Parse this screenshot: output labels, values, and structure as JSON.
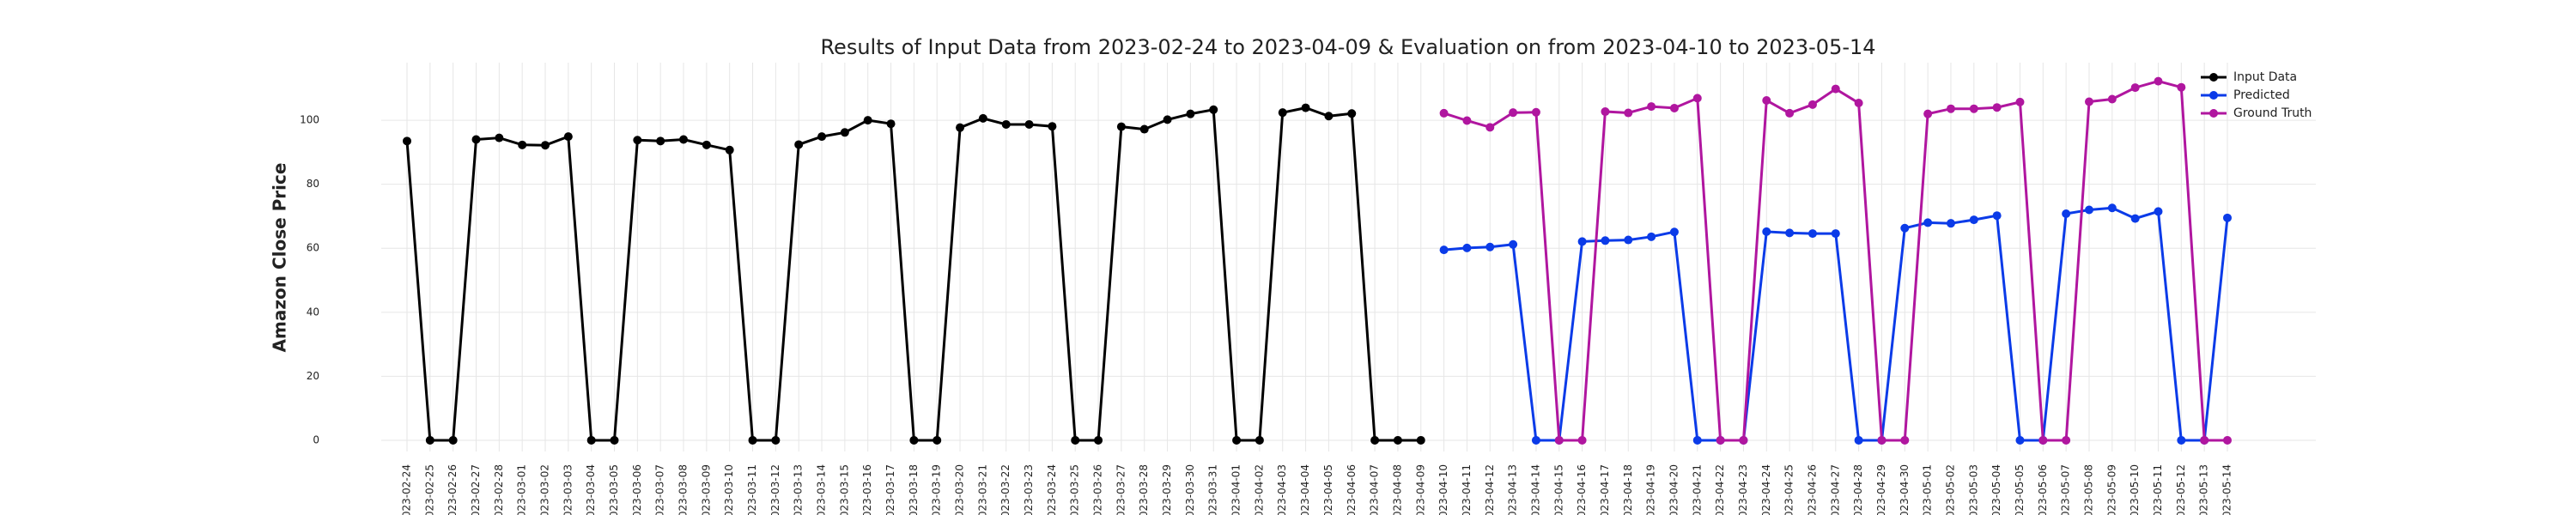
{
  "chart_data": {
    "type": "line",
    "title": "Results of Input Data from 2023-02-24 to 2023-04-09 & Evaluation on from 2023-04-10 to 2023-05-14",
    "y_label": "Amazon Close Price",
    "categories": [
      "2023-02-24",
      "2023-02-25",
      "2023-02-26",
      "2023-02-27",
      "2023-02-28",
      "2023-03-01",
      "2023-03-02",
      "2023-03-03",
      "2023-03-04",
      "2023-03-05",
      "2023-03-06",
      "2023-03-07",
      "2023-03-08",
      "2023-03-09",
      "2023-03-10",
      "2023-03-11",
      "2023-03-12",
      "2023-03-13",
      "2023-03-14",
      "2023-03-15",
      "2023-03-16",
      "2023-03-17",
      "2023-03-18",
      "2023-03-19",
      "2023-03-20",
      "2023-03-21",
      "2023-03-22",
      "2023-03-23",
      "2023-03-24",
      "2023-03-25",
      "2023-03-26",
      "2023-03-27",
      "2023-03-28",
      "2023-03-29",
      "2023-03-30",
      "2023-03-31",
      "2023-04-01",
      "2023-04-02",
      "2023-04-03",
      "2023-04-04",
      "2023-04-05",
      "2023-04-06",
      "2023-04-07",
      "2023-04-08",
      "2023-04-09",
      "2023-04-10",
      "2023-04-11",
      "2023-04-12",
      "2023-04-13",
      "2023-04-14",
      "2023-04-15",
      "2023-04-16",
      "2023-04-17",
      "2023-04-18",
      "2023-04-19",
      "2023-04-20",
      "2023-04-21",
      "2023-04-22",
      "2023-04-23",
      "2023-04-24",
      "2023-04-25",
      "2023-04-26",
      "2023-04-27",
      "2023-04-28",
      "2023-04-29",
      "2023-04-30",
      "2023-05-01",
      "2023-05-02",
      "2023-05-03",
      "2023-05-04",
      "2023-05-05",
      "2023-05-06",
      "2023-05-07",
      "2023-05-08",
      "2023-05-09",
      "2023-05-10",
      "2023-05-11",
      "2023-05-12",
      "2023-05-13",
      "2023-05-14"
    ],
    "series": [
      {
        "name": "Input Data",
        "color": "#000000",
        "values": [
          93.5,
          0,
          0,
          94,
          94.5,
          92.3,
          92.2,
          94.9,
          0,
          0,
          93.8,
          93.5,
          94,
          92.3,
          90.7,
          0,
          0,
          92.4,
          94.9,
          96.2,
          100,
          98.9,
          0,
          0,
          97.7,
          100.6,
          98.7,
          98.7,
          98.1,
          0,
          0,
          98,
          97.2,
          100.2,
          102,
          103.3,
          0,
          0,
          102.4,
          103.9,
          101.3,
          102.1,
          0,
          0,
          0,
          null,
          null,
          null,
          null,
          null,
          null,
          null,
          null,
          null,
          null,
          null,
          null,
          null,
          null,
          null,
          null,
          null,
          null,
          null,
          null,
          null,
          null,
          null,
          null,
          null,
          null,
          null,
          null,
          null,
          null,
          null,
          null,
          null,
          null,
          null
        ]
      },
      {
        "name": "Predicted",
        "color": "#0b3be8",
        "values": [
          null,
          null,
          null,
          null,
          null,
          null,
          null,
          null,
          null,
          null,
          null,
          null,
          null,
          null,
          null,
          null,
          null,
          null,
          null,
          null,
          null,
          null,
          null,
          null,
          null,
          null,
          null,
          null,
          null,
          null,
          null,
          null,
          null,
          null,
          null,
          null,
          null,
          null,
          null,
          null,
          null,
          null,
          null,
          null,
          null,
          59.5,
          60.1,
          60.4,
          61.2,
          0,
          0,
          62.1,
          62.4,
          62.6,
          63.6,
          65.1,
          0,
          0,
          0,
          65.2,
          64.8,
          64.6,
          64.6,
          0,
          0,
          66.3,
          68,
          67.8,
          68.9,
          70.2,
          0,
          0,
          70.8,
          72,
          72.6,
          69.3,
          71.5,
          0,
          0,
          69.5
        ]
      },
      {
        "name": "Ground Truth",
        "color": "#b0169f",
        "values": [
          null,
          null,
          null,
          null,
          null,
          null,
          null,
          null,
          null,
          null,
          null,
          null,
          null,
          null,
          null,
          null,
          null,
          null,
          null,
          null,
          null,
          null,
          null,
          null,
          null,
          null,
          null,
          null,
          null,
          null,
          null,
          null,
          null,
          null,
          null,
          null,
          null,
          null,
          null,
          null,
          null,
          null,
          null,
          null,
          null,
          102.2,
          99.9,
          97.8,
          102.4,
          102.5,
          0,
          0,
          102.7,
          102.3,
          104.3,
          103.8,
          106.9,
          0,
          0,
          106.2,
          102.2,
          104.9,
          109.8,
          105.4,
          0,
          0,
          102,
          103.6,
          103.6,
          104,
          105.7,
          0,
          0,
          105.8,
          106.6,
          110.2,
          112.2,
          110.3,
          0,
          0
        ]
      }
    ],
    "ylim": [
      -3.5,
      118
    ],
    "yticks": [
      0,
      20,
      40,
      60,
      80,
      100
    ],
    "grid": true,
    "legend": "upper right"
  }
}
